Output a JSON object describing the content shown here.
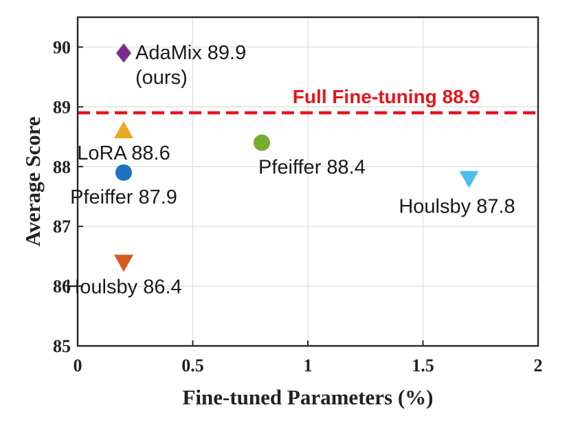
{
  "chart_data": {
    "type": "scatter",
    "xlabel": "Fine-tuned Parameters (%)",
    "ylabel": "Average Score",
    "xlim": [
      0,
      2
    ],
    "ylim": [
      85,
      90.5
    ],
    "xticks": [
      0,
      0.5,
      1,
      1.5,
      2
    ],
    "xtick_labels": [
      "0",
      "0.5",
      "1",
      "1.5",
      "2"
    ],
    "yticks": [
      85,
      86,
      87,
      88,
      89,
      90
    ],
    "ytick_labels": [
      "85",
      "86",
      "87",
      "88",
      "89",
      "90"
    ],
    "grid": true,
    "reference_line": {
      "y": 88.9,
      "label": "Full Fine-tuning 88.9",
      "color": "#e8141c",
      "style": "dashed"
    },
    "points": [
      {
        "x": 0.2,
        "y": 89.9,
        "marker": "diamond",
        "color": "#7b2d8e",
        "label_lines": [
          "AdaMix 89.9",
          "(ours)"
        ]
      },
      {
        "x": 0.2,
        "y": 88.6,
        "marker": "triangle-up",
        "color": "#eba823",
        "label_lines": [
          "LoRA 88.6"
        ]
      },
      {
        "x": 0.2,
        "y": 87.9,
        "marker": "circle",
        "color": "#1f72bd",
        "label_lines": [
          "Pfeiffer 87.9"
        ]
      },
      {
        "x": 0.2,
        "y": 86.4,
        "marker": "triangle-down",
        "color": "#d65a1e",
        "label_lines": [
          "Houlsby 86.4"
        ]
      },
      {
        "x": 0.8,
        "y": 88.4,
        "marker": "circle",
        "color": "#77ac30",
        "label_lines": [
          "Pfeiffer 88.4"
        ]
      },
      {
        "x": 1.7,
        "y": 87.8,
        "marker": "triangle-down",
        "color": "#4dbeee",
        "label_lines": [
          "Houlsby 87.8"
        ]
      }
    ]
  }
}
